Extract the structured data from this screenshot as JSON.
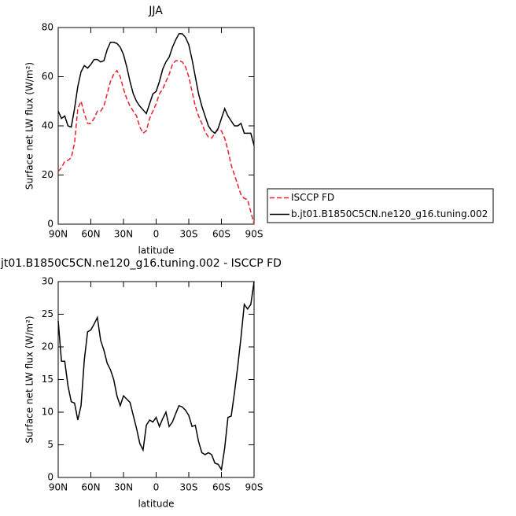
{
  "chart_data": [
    {
      "type": "line",
      "title": "JJA",
      "xlabel": "latitude",
      "ylabel": "Surface net LW flux (W/m²)",
      "x": [
        90,
        87,
        84,
        81,
        78,
        75,
        72,
        69,
        66,
        63,
        60,
        57,
        54,
        51,
        48,
        45,
        42,
        39,
        36,
        33,
        30,
        27,
        24,
        21,
        18,
        15,
        12,
        9,
        6,
        3,
        0,
        -3,
        -6,
        -9,
        -12,
        -15,
        -18,
        -21,
        -24,
        -27,
        -30,
        -33,
        -36,
        -39,
        -42,
        -45,
        -48,
        -51,
        -54,
        -57,
        -60,
        -63,
        -66,
        -69,
        -72,
        -75,
        -78,
        -81,
        -84,
        -87,
        -90
      ],
      "series": [
        {
          "name": "ISCCP FD",
          "color": "#e8202a",
          "style": "dashed",
          "values": [
            21.5,
            23,
            25.5,
            26,
            27,
            33,
            47,
            50,
            45,
            41,
            41,
            43,
            46,
            46,
            48,
            53,
            58,
            61,
            62.5,
            60,
            55,
            51,
            48,
            46,
            44,
            39.5,
            37,
            38,
            43,
            46,
            49,
            53,
            55,
            58,
            61,
            65,
            66.5,
            66.5,
            66,
            64,
            60,
            54,
            48,
            44,
            41,
            37.5,
            35.5,
            35,
            37,
            38.5,
            38,
            35,
            30,
            24,
            20,
            16,
            12,
            10.5,
            10,
            5,
            0
          ]
        },
        {
          "name": "b.jt01.B1850C5CN.ne120_g16.tuning.002",
          "color": "#000000",
          "style": "solid",
          "values": [
            46,
            43,
            44,
            40,
            39.5,
            47,
            56,
            62,
            64.5,
            63.5,
            65,
            67,
            67,
            66,
            66.5,
            71,
            74,
            74,
            73.5,
            72,
            69,
            64,
            58,
            53,
            50,
            48,
            46.5,
            45,
            49,
            53,
            54,
            58,
            63,
            66,
            68,
            72,
            75,
            77.5,
            77.5,
            76,
            73,
            67,
            60,
            53,
            48,
            44,
            40,
            38,
            37,
            39,
            43,
            47,
            44,
            42,
            40,
            40,
            41,
            37,
            37,
            37,
            32
          ]
        }
      ],
      "xlim": [
        90,
        -90
      ],
      "xticks": [
        {
          "value": 90,
          "label": "90N"
        },
        {
          "value": 60,
          "label": "60N"
        },
        {
          "value": 30,
          "label": "30N"
        },
        0,
        {
          "value": -30,
          "label": "30S"
        },
        {
          "value": -60,
          "label": "60S"
        },
        {
          "value": -90,
          "label": "90S"
        }
      ],
      "ylim": [
        0,
        80
      ],
      "yticks": [
        0,
        20,
        40,
        60,
        80
      ],
      "legend": "outside-right"
    },
    {
      "type": "line",
      "title": "jt01.B1850C5CN.ne120_g16.tuning.002 - ISCCP FD",
      "xlabel": "latitude",
      "ylabel": "Surface net LW flux (W/m²)",
      "x": [
        90,
        87,
        84,
        81,
        78,
        75,
        72,
        69,
        66,
        63,
        60,
        57,
        54,
        51,
        48,
        45,
        42,
        39,
        36,
        33,
        30,
        27,
        24,
        21,
        18,
        15,
        12,
        9,
        6,
        3,
        0,
        -3,
        -6,
        -9,
        -12,
        -15,
        -18,
        -21,
        -24,
        -27,
        -30,
        -33,
        -36,
        -39,
        -42,
        -45,
        -48,
        -51,
        -54,
        -57,
        -60,
        -63,
        -66,
        -69,
        -72,
        -75,
        -78,
        -81,
        -84,
        -87,
        -90
      ],
      "series": [
        {
          "color": "#000000",
          "style": "solid",
          "values": [
            24,
            17.8,
            17.8,
            14,
            11.6,
            11.4,
            8.8,
            11,
            18,
            22.3,
            22.6,
            23.5,
            24.5,
            21,
            19.5,
            17.5,
            16.5,
            15,
            12.5,
            11,
            12.5,
            12,
            11.5,
            9.5,
            7.5,
            5.2,
            4.2,
            8,
            8.8,
            8.5,
            9.2,
            7.8,
            9,
            10,
            7.8,
            8.5,
            9.8,
            11,
            10.8,
            10.3,
            9.5,
            7.8,
            8,
            5.5,
            3.8,
            3.5,
            3.8,
            3.5,
            2.2,
            2,
            1.2,
            4.5,
            9.2,
            9.4,
            13,
            17,
            21.5,
            26.5,
            25.8,
            26.5,
            30
          ]
        }
      ],
      "xlim": [
        90,
        -90
      ],
      "xticks": [
        {
          "value": 90,
          "label": "90N"
        },
        {
          "value": 60,
          "label": "60N"
        },
        {
          "value": 30,
          "label": "30N"
        },
        0,
        {
          "value": -30,
          "label": "30S"
        },
        {
          "value": -60,
          "label": "60S"
        },
        {
          "value": -90,
          "label": "90S"
        }
      ],
      "ylim": [
        0,
        30
      ],
      "yticks": [
        0,
        5,
        10,
        15,
        20,
        25,
        30
      ]
    }
  ]
}
